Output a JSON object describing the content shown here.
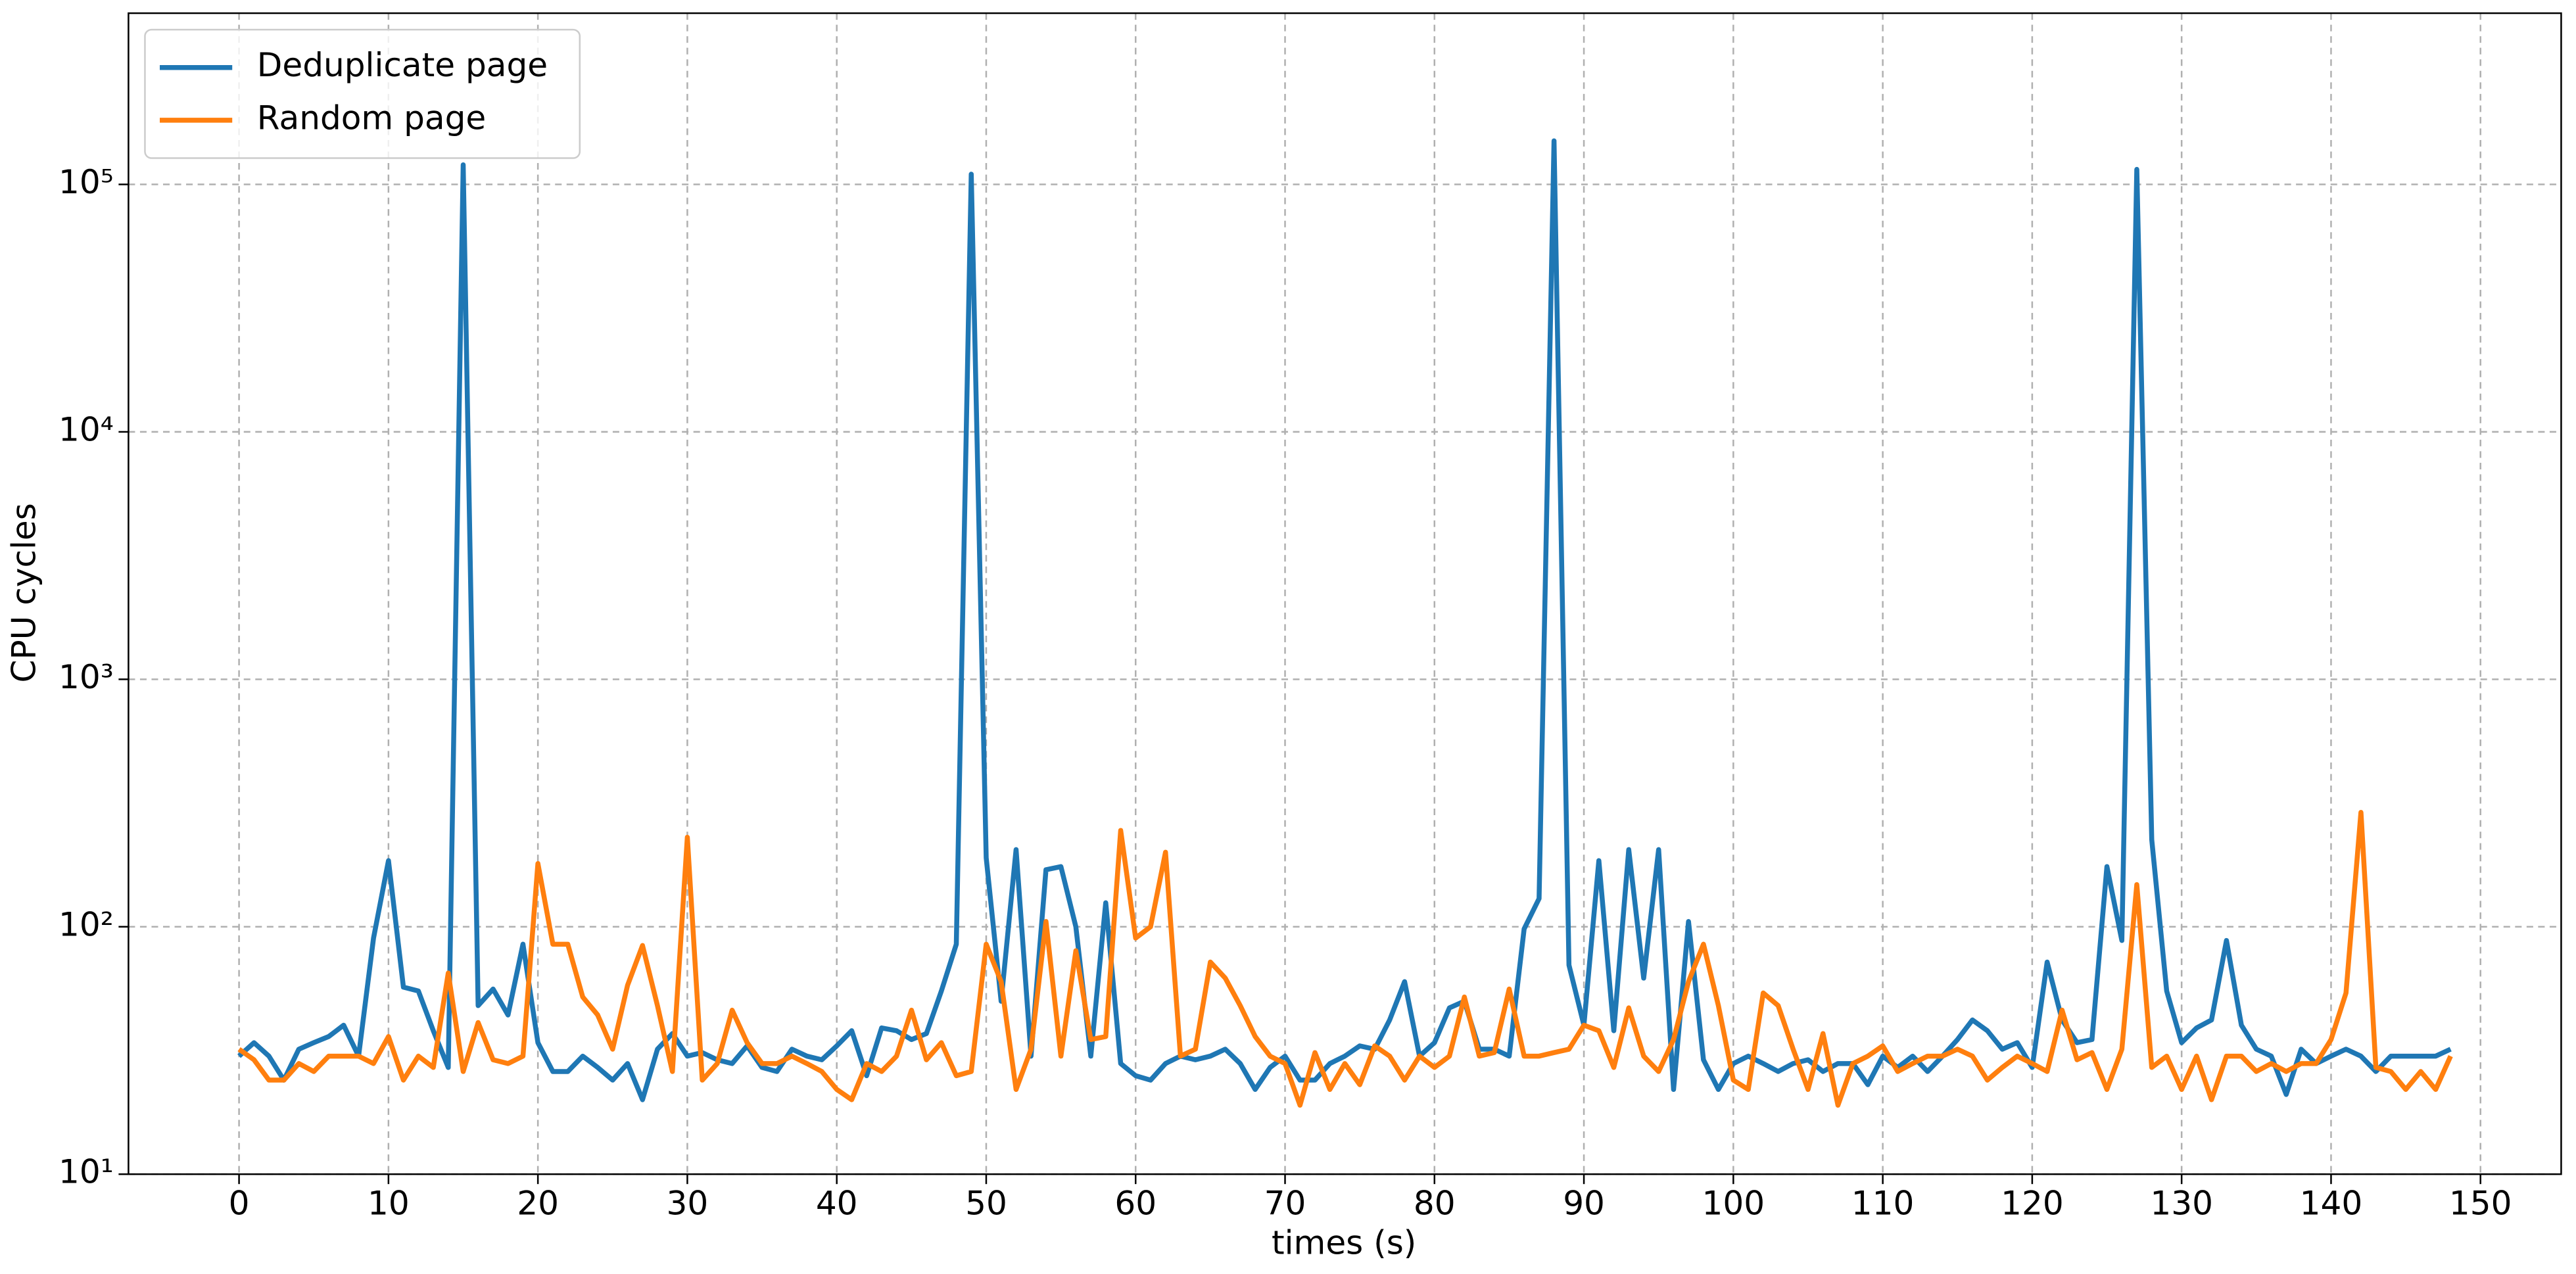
{
  "chart_data": {
    "type": "line",
    "xlabel": "times (s)",
    "ylabel": "CPU cycles",
    "x": [
      0,
      1,
      2,
      3,
      4,
      5,
      6,
      7,
      8,
      9,
      10,
      11,
      12,
      13,
      14,
      15,
      16,
      17,
      18,
      19,
      20,
      21,
      22,
      23,
      24,
      25,
      26,
      27,
      28,
      29,
      30,
      31,
      32,
      33,
      34,
      35,
      36,
      37,
      38,
      39,
      40,
      41,
      42,
      43,
      44,
      45,
      46,
      47,
      48,
      49,
      50,
      51,
      52,
      53,
      54,
      55,
      56,
      57,
      58,
      59,
      60,
      61,
      62,
      63,
      64,
      65,
      66,
      67,
      68,
      69,
      70,
      71,
      72,
      73,
      74,
      75,
      76,
      77,
      78,
      79,
      80,
      81,
      82,
      83,
      84,
      85,
      86,
      87,
      88,
      89,
      90,
      91,
      92,
      93,
      94,
      95,
      96,
      97,
      98,
      99,
      100,
      101,
      102,
      103,
      104,
      105,
      106,
      107,
      108,
      109,
      110,
      111,
      112,
      113,
      114,
      115,
      116,
      117,
      118,
      119,
      120,
      121,
      122,
      123,
      124,
      125,
      126,
      127,
      128,
      129,
      130,
      131,
      132,
      133,
      134,
      135,
      136,
      137,
      138,
      139,
      140,
      141,
      142,
      143,
      144,
      145,
      146,
      147,
      148
    ],
    "series": [
      {
        "name": "Deduplicate page",
        "color": "#1f77b4",
        "values": [
          30,
          34,
          30,
          24,
          32,
          34,
          36,
          40,
          30,
          90,
          185,
          57,
          55,
          38,
          27,
          120000,
          48,
          56,
          44,
          85,
          34,
          26,
          26,
          30,
          27,
          24,
          28,
          20,
          32,
          37,
          30,
          31,
          29,
          28,
          33,
          27,
          26,
          32,
          30,
          29,
          33,
          38,
          25,
          39,
          38,
          35,
          37,
          55,
          85,
          110000,
          190,
          50,
          205,
          30,
          170,
          175,
          100,
          30,
          125,
          28,
          25,
          24,
          28,
          30,
          29,
          30,
          32,
          28,
          22,
          27,
          30,
          24,
          24,
          28,
          30,
          33,
          32,
          42,
          60,
          30,
          34,
          47,
          50,
          32,
          32,
          30,
          98,
          130,
          150000,
          70,
          40,
          185,
          38,
          205,
          62,
          205,
          22,
          105,
          29,
          22,
          28,
          30,
          28,
          26,
          28,
          29,
          26,
          28,
          28,
          23,
          30,
          27,
          30,
          26,
          30,
          35,
          42,
          38,
          32,
          34,
          27,
          72,
          42,
          34,
          35,
          175,
          88,
          115000,
          225,
          55,
          34,
          39,
          42,
          88,
          40,
          32,
          30,
          21,
          32,
          28,
          30,
          32,
          30,
          26,
          30,
          30,
          30,
          30,
          32
        ]
      },
      {
        "name": "Random page",
        "color": "#ff7f0e",
        "values": [
          32,
          29,
          24,
          24,
          28,
          26,
          30,
          30,
          30,
          28,
          36,
          24,
          30,
          27,
          65,
          26,
          41,
          29,
          28,
          30,
          180,
          85,
          85,
          52,
          44,
          32,
          58,
          84,
          48,
          26,
          230,
          24,
          28,
          46,
          34,
          28,
          28,
          30,
          28,
          26,
          22,
          20,
          28,
          26,
          30,
          46,
          29,
          34,
          25,
          26,
          85,
          60,
          22,
          32,
          105,
          30,
          80,
          35,
          36,
          245,
          90,
          100,
          200,
          30,
          32,
          72,
          62,
          48,
          36,
          30,
          28,
          19,
          31,
          22,
          28,
          23,
          33,
          30,
          24,
          30,
          27,
          30,
          52,
          30,
          31,
          56,
          30,
          30,
          31,
          32,
          40,
          38,
          27,
          47,
          30,
          26,
          35,
          60,
          85,
          48,
          24,
          22,
          54,
          48,
          32,
          22,
          37,
          19,
          28,
          30,
          33,
          26,
          28,
          30,
          30,
          32,
          30,
          24,
          27,
          30,
          28,
          26,
          46,
          29,
          31,
          22,
          32,
          148,
          27,
          30,
          22,
          30,
          20,
          30,
          30,
          26,
          28,
          26,
          28,
          28,
          35,
          54,
          290,
          27,
          26,
          22,
          26,
          22,
          30
        ]
      }
    ],
    "xlim": [
      -7.4,
      155.4
    ],
    "xticks": [
      0,
      10,
      20,
      30,
      40,
      50,
      60,
      70,
      80,
      90,
      100,
      110,
      120,
      130,
      140,
      150
    ],
    "ylim": [
      10,
      492000
    ],
    "log_y": true,
    "yticks": [
      {
        "value": 10,
        "label": "10¹"
      },
      {
        "value": 100,
        "label": "10²"
      },
      {
        "value": 1000,
        "label": "10³"
      },
      {
        "value": 10000,
        "label": "10⁴"
      },
      {
        "value": 100000,
        "label": "10⁵"
      }
    ],
    "grid": true,
    "legend": "upper left"
  }
}
